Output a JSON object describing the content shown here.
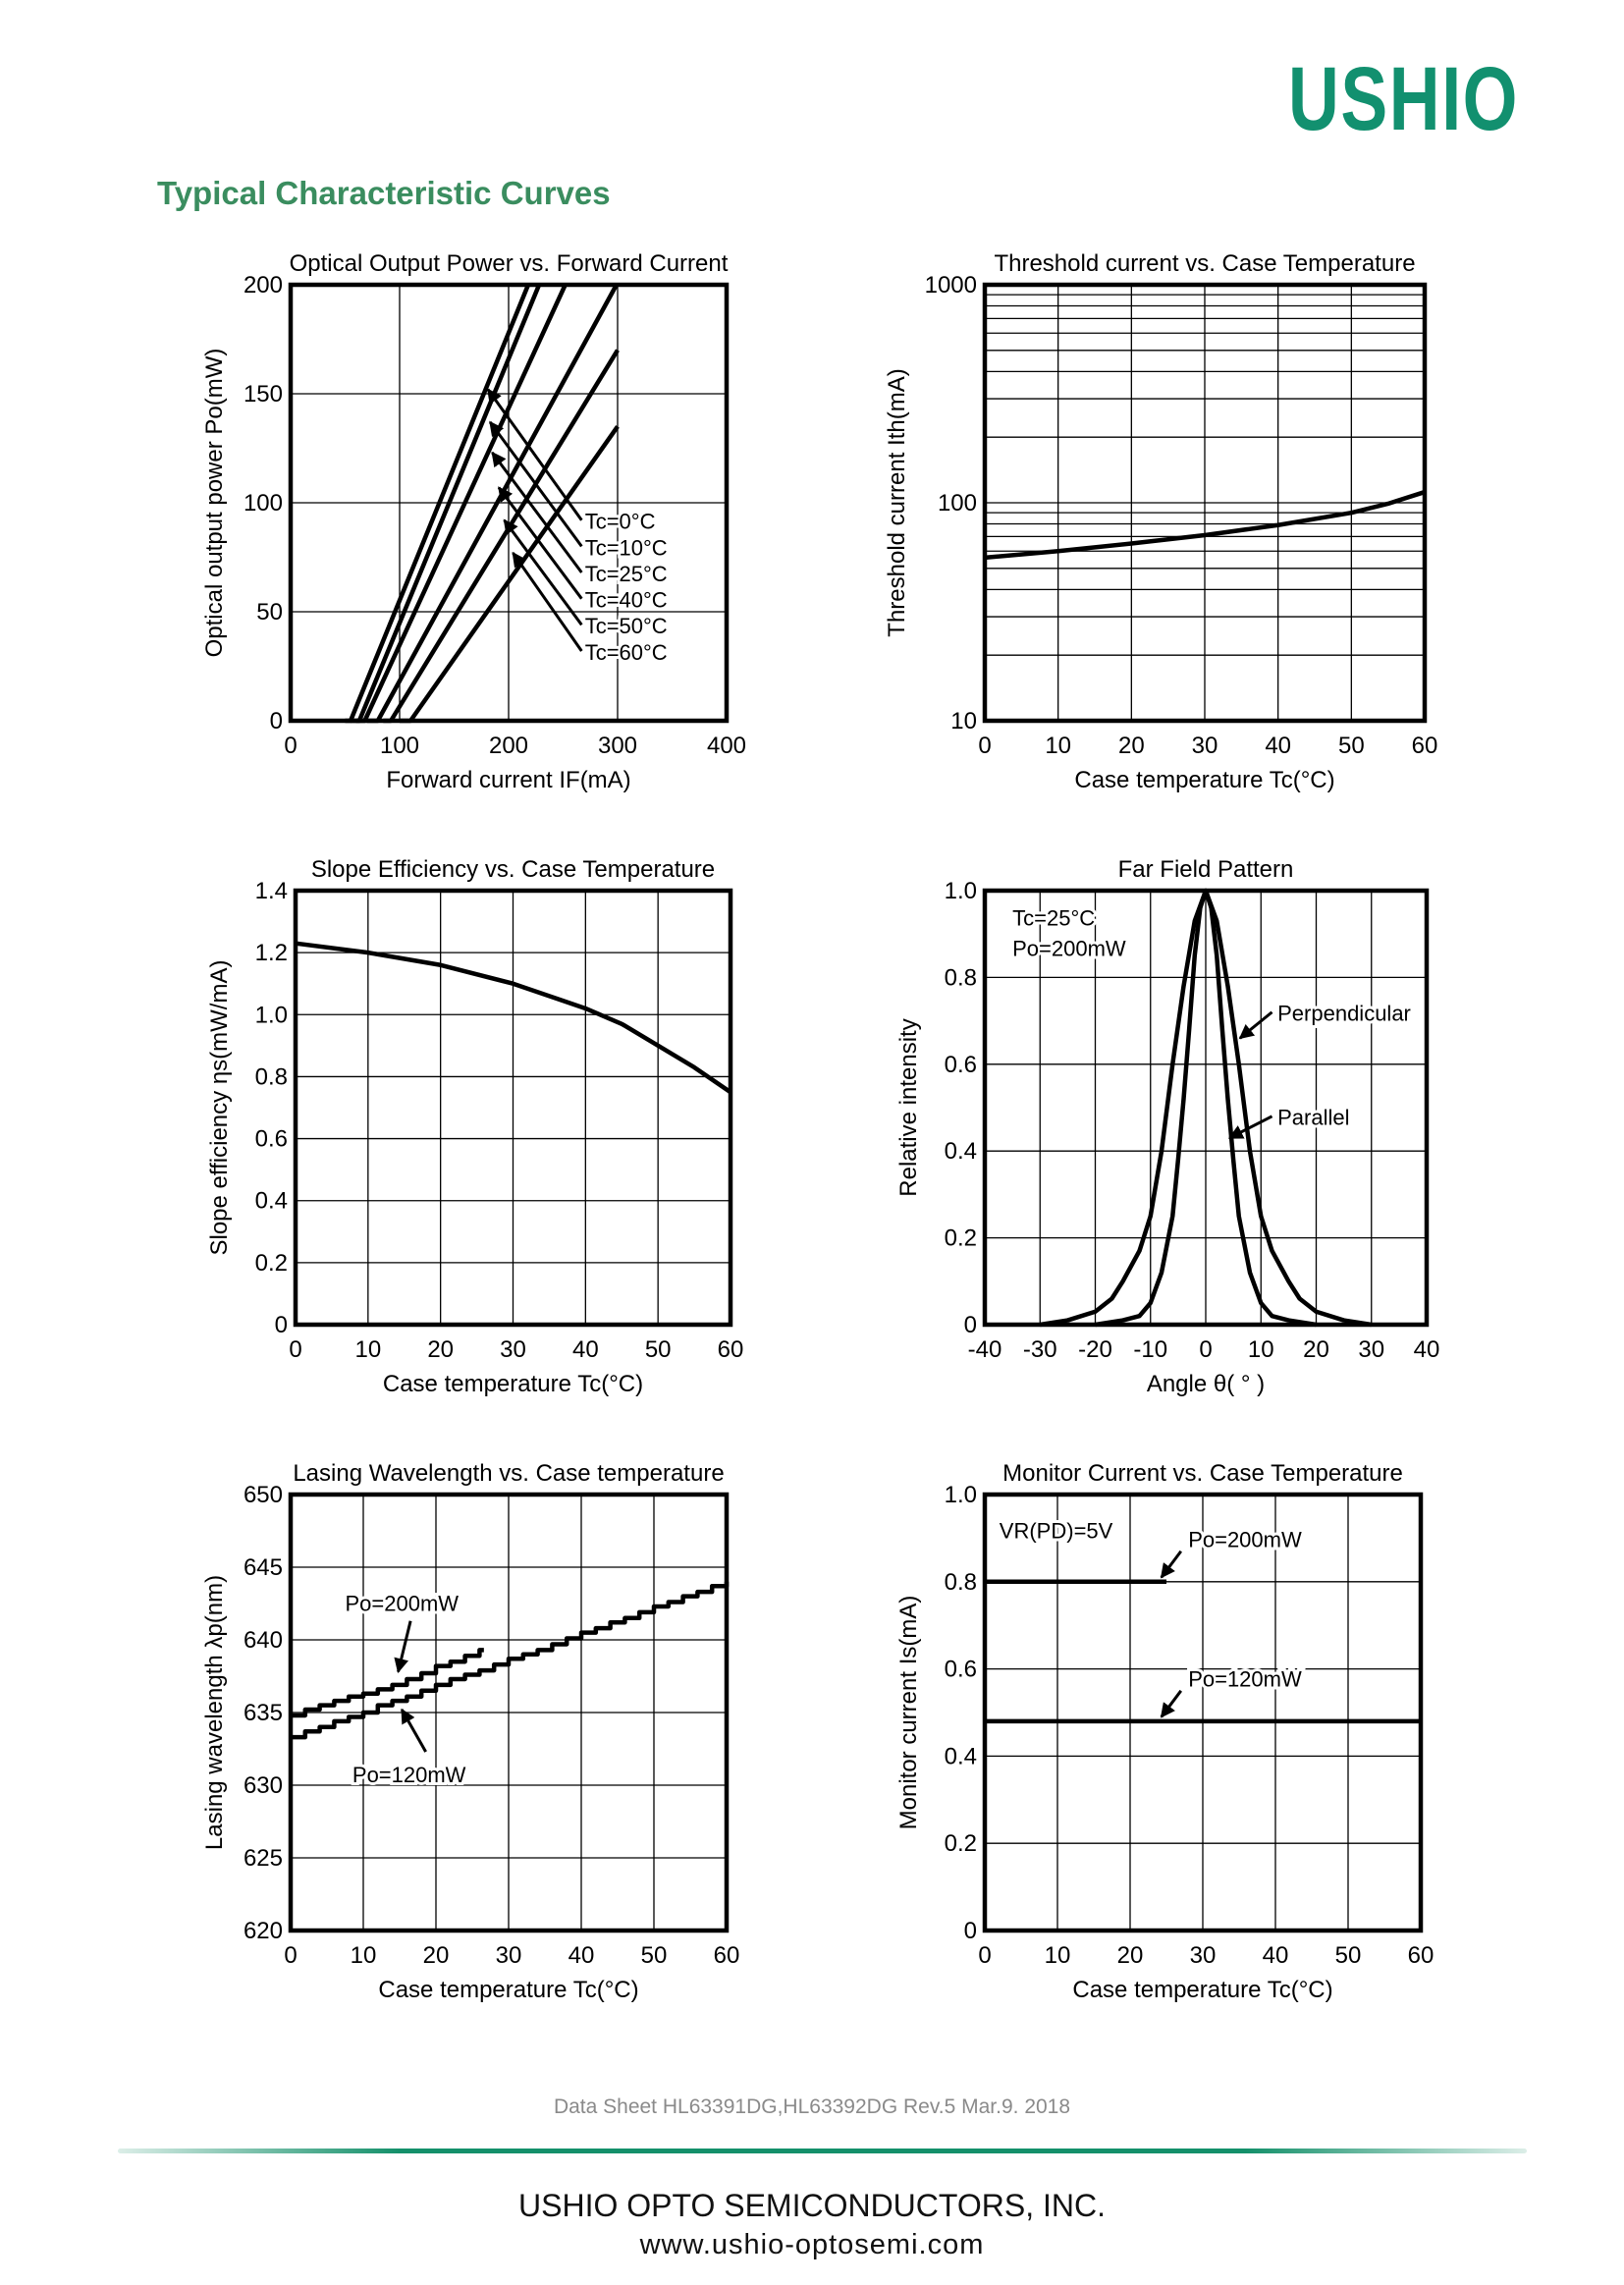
{
  "header": {
    "logo_text": "USHIO",
    "section_title": "Typical Characteristic Curves",
    "brand_color": "#12906f",
    "title_color": "#3a8d5f"
  },
  "chart_data": [
    {
      "id": "po-vs-if",
      "type": "line",
      "title": "Optical Output Power vs. Forward Current",
      "xlabel": "Forward current IF(mA)",
      "ylabel": "Optical output power Po(mW)",
      "xlim": [
        0,
        400
      ],
      "ylim": [
        0,
        200
      ],
      "ylog": false,
      "xgrid": [
        100,
        200,
        300
      ],
      "ygrid": [
        50,
        100,
        150
      ],
      "xticks": [
        0,
        100,
        200,
        300,
        400
      ],
      "xtick_labels": [
        "0",
        "100",
        "200",
        "300",
        "400"
      ],
      "yticks": [
        0,
        50,
        100,
        150,
        200
      ],
      "ytick_labels": [
        "0",
        "50",
        "100",
        "150",
        "200"
      ],
      "series": [
        {
          "name": "Tc=0°C",
          "points": [
            [
              50,
              0
            ],
            [
              55,
              0
            ],
            [
              218,
              200
            ]
          ]
        },
        {
          "name": "Tc=10°C",
          "points": [
            [
              55,
              0
            ],
            [
              63,
              0
            ],
            [
              228,
              200
            ]
          ]
        },
        {
          "name": "Tc=25°C",
          "points": [
            [
              60,
              0
            ],
            [
              68,
              0
            ],
            [
              252,
              200
            ]
          ]
        },
        {
          "name": "Tc=40°C",
          "points": [
            [
              70,
              0
            ],
            [
              80,
              0
            ],
            [
              299,
              200
            ]
          ]
        },
        {
          "name": "Tc=50°C",
          "points": [
            [
              85,
              0
            ],
            [
              92,
              0
            ],
            [
              300,
              170
            ]
          ]
        },
        {
          "name": "Tc=60°C",
          "points": [
            [
              100,
              0
            ],
            [
              110,
              0
            ],
            [
              300,
              135
            ]
          ]
        }
      ],
      "annotations": [
        {
          "text": "Tc=0°C",
          "at": [
            270,
            88
          ],
          "arrow_from": [
            267,
            92
          ],
          "arrow_to": [
            181,
            152
          ]
        },
        {
          "text": "Tc=10°C",
          "at": [
            270,
            76
          ],
          "arrow_from": [
            267,
            80
          ],
          "arrow_to": [
            183,
            137
          ]
        },
        {
          "text": "Tc=25°C",
          "at": [
            270,
            64
          ],
          "arrow_from": [
            267,
            68
          ],
          "arrow_to": [
            185,
            123
          ]
        },
        {
          "text": "Tc=40°C",
          "at": [
            270,
            52
          ],
          "arrow_from": [
            267,
            56
          ],
          "arrow_to": [
            191,
            107
          ]
        },
        {
          "text": "Tc=50°C",
          "at": [
            270,
            40
          ],
          "arrow_from": [
            267,
            44
          ],
          "arrow_to": [
            196,
            92
          ]
        },
        {
          "text": "Tc=60°C",
          "at": [
            270,
            28
          ],
          "arrow_from": [
            267,
            32
          ],
          "arrow_to": [
            204,
            77
          ]
        }
      ]
    },
    {
      "id": "ith-vs-tc",
      "type": "line",
      "title": "Threshold current vs. Case Temperature",
      "xlabel": "Case temperature Tc(°C)",
      "ylabel": "Threshold current Ith(mA)",
      "xlim": [
        0,
        60
      ],
      "ylim": [
        10,
        1000
      ],
      "ylog": true,
      "xgrid": [
        10,
        20,
        30,
        40,
        50
      ],
      "ygrid": [
        20,
        30,
        40,
        50,
        60,
        70,
        80,
        90,
        100,
        200,
        300,
        400,
        500,
        600,
        700,
        800,
        900
      ],
      "xticks": [
        0,
        10,
        20,
        30,
        40,
        50,
        60
      ],
      "xtick_labels": [
        "0",
        "10",
        "20",
        "30",
        "40",
        "50",
        "60"
      ],
      "yticks": [
        10,
        100,
        1000
      ],
      "ytick_labels": [
        "10",
        "100",
        "1000"
      ],
      "series": [
        {
          "name": "Ith",
          "points": [
            [
              0,
              56
            ],
            [
              10,
              60
            ],
            [
              20,
              65
            ],
            [
              30,
              71
            ],
            [
              40,
              79
            ],
            [
              50,
              90
            ],
            [
              55,
              99
            ],
            [
              60,
              112
            ]
          ]
        }
      ],
      "annotations": []
    },
    {
      "id": "slope-vs-tc",
      "type": "line",
      "title": "Slope Efficiency vs. Case Temperature",
      "xlabel": "Case temperature Tc(°C)",
      "ylabel": "Slope efficiency ηs(mW/mA)",
      "xlim": [
        0,
        60
      ],
      "ylim": [
        0,
        1.4
      ],
      "ylog": false,
      "xgrid": [
        10,
        20,
        30,
        40,
        50
      ],
      "ygrid": [
        0.2,
        0.4,
        0.6,
        0.8,
        1.0,
        1.2
      ],
      "xticks": [
        0,
        10,
        20,
        30,
        40,
        50,
        60
      ],
      "xtick_labels": [
        "0",
        "10",
        "20",
        "30",
        "40",
        "50",
        "60"
      ],
      "yticks": [
        0,
        0.2,
        0.4,
        0.6,
        0.8,
        1.0,
        1.2,
        1.4
      ],
      "ytick_labels": [
        "0",
        "0.2",
        "0.4",
        "0.6",
        "0.8",
        "1.0",
        "1.2",
        "1.4"
      ],
      "series": [
        {
          "name": "ηs",
          "points": [
            [
              0,
              1.23
            ],
            [
              10,
              1.2
            ],
            [
              20,
              1.16
            ],
            [
              30,
              1.1
            ],
            [
              40,
              1.02
            ],
            [
              45,
              0.97
            ],
            [
              50,
              0.9
            ],
            [
              55,
              0.83
            ],
            [
              60,
              0.75
            ]
          ]
        }
      ],
      "annotations": []
    },
    {
      "id": "far-field",
      "type": "line",
      "title": "Far Field Pattern",
      "xlabel": "Angle θ( ° )",
      "ylabel": "Relative intensity",
      "xlim": [
        -40,
        40
      ],
      "ylim": [
        0,
        1.0
      ],
      "ylog": false,
      "xgrid": [
        -30,
        -20,
        -10,
        0,
        10,
        20,
        30
      ],
      "ygrid": [
        0.2,
        0.4,
        0.6,
        0.8
      ],
      "xticks": [
        -40,
        -30,
        -20,
        -10,
        0,
        10,
        20,
        30,
        40
      ],
      "xtick_labels": [
        "-40",
        "-30",
        "-20",
        "-10",
        "0",
        "10",
        "20",
        "30",
        "40"
      ],
      "yticks": [
        0,
        0.2,
        0.4,
        0.6,
        0.8,
        1.0
      ],
      "ytick_labels": [
        "0",
        "0.2",
        "0.4",
        "0.6",
        "0.8",
        "1.0"
      ],
      "series": [
        {
          "name": "Perpendicular",
          "points": [
            [
              -30,
              0
            ],
            [
              -25,
              0.01
            ],
            [
              -20,
              0.03
            ],
            [
              -17,
              0.06
            ],
            [
              -15,
              0.1
            ],
            [
              -12,
              0.17
            ],
            [
              -10,
              0.25
            ],
            [
              -8,
              0.4
            ],
            [
              -7,
              0.5
            ],
            [
              -6,
              0.6
            ],
            [
              -4,
              0.78
            ],
            [
              -2,
              0.93
            ],
            [
              0,
              1
            ],
            [
              2,
              0.93
            ],
            [
              4,
              0.78
            ],
            [
              6,
              0.6
            ],
            [
              7,
              0.5
            ],
            [
              8,
              0.4
            ],
            [
              10,
              0.25
            ],
            [
              12,
              0.17
            ],
            [
              15,
              0.1
            ],
            [
              17,
              0.06
            ],
            [
              20,
              0.03
            ],
            [
              25,
              0.01
            ],
            [
              30,
              0
            ]
          ]
        },
        {
          "name": "Parallel",
          "points": [
            [
              -20,
              0
            ],
            [
              -15,
              0.01
            ],
            [
              -12,
              0.02
            ],
            [
              -10,
              0.05
            ],
            [
              -8,
              0.12
            ],
            [
              -6,
              0.25
            ],
            [
              -5,
              0.38
            ],
            [
              -4,
              0.52
            ],
            [
              -3,
              0.68
            ],
            [
              -2,
              0.85
            ],
            [
              -1,
              0.96
            ],
            [
              0,
              1
            ],
            [
              1,
              0.96
            ],
            [
              2,
              0.85
            ],
            [
              3,
              0.68
            ],
            [
              4,
              0.52
            ],
            [
              5,
              0.38
            ],
            [
              6,
              0.25
            ],
            [
              8,
              0.12
            ],
            [
              10,
              0.05
            ],
            [
              12,
              0.02
            ],
            [
              15,
              0.01
            ],
            [
              20,
              0
            ]
          ]
        }
      ],
      "annotations": [
        {
          "text": "Tc=25°C",
          "at": [
            -35,
            0.92
          ]
        },
        {
          "text": "Po=200mW",
          "at": [
            -35,
            0.85
          ]
        },
        {
          "text": "Perpendicular",
          "at": [
            13,
            0.7
          ],
          "arrow_from": [
            12,
            0.72
          ],
          "arrow_to": [
            6.2,
            0.66
          ]
        },
        {
          "text": "Parallel",
          "at": [
            13,
            0.46
          ],
          "arrow_from": [
            12,
            0.48
          ],
          "arrow_to": [
            4.3,
            0.43
          ]
        }
      ]
    },
    {
      "id": "lambda-vs-tc",
      "type": "line",
      "title": "Lasing Wavelength vs. Case temperature",
      "xlabel": "Case temperature Tc(°C)",
      "ylabel": "Lasing wavelength λp(nm)",
      "xlim": [
        0,
        60
      ],
      "ylim": [
        620,
        650
      ],
      "ylog": false,
      "step": true,
      "xgrid": [
        10,
        20,
        30,
        40,
        50
      ],
      "ygrid": [
        625,
        630,
        635,
        640,
        645
      ],
      "xticks": [
        0,
        10,
        20,
        30,
        40,
        50,
        60
      ],
      "xtick_labels": [
        "0",
        "10",
        "20",
        "30",
        "40",
        "50",
        "60"
      ],
      "yticks": [
        620,
        625,
        630,
        635,
        640,
        645,
        650
      ],
      "ytick_labels": [
        "620",
        "625",
        "630",
        "635",
        "640",
        "645",
        "650"
      ],
      "series": [
        {
          "name": "Po=200mW",
          "x_start": 0,
          "x_step": 2,
          "values": [
            634.8,
            635.2,
            635.5,
            635.8,
            636.1,
            636.3,
            636.6,
            636.9,
            637.3,
            637.7,
            638.2,
            638.5,
            638.9,
            639.3
          ]
        },
        {
          "name": "Po=120mW",
          "x_start": 0,
          "x_step": 2,
          "values": [
            633.3,
            633.7,
            634.0,
            634.4,
            634.7,
            635.0,
            635.5,
            635.8,
            636.1,
            636.5,
            636.9,
            637.3,
            637.6,
            637.9,
            638.3,
            638.7,
            639.0,
            639.3,
            639.7,
            640.1,
            640.5,
            640.8,
            641.2,
            641.5,
            641.9,
            642.3,
            642.6,
            643.0,
            643.3,
            643.7,
            644.0
          ]
        }
      ],
      "annotations": [
        {
          "text": "Po=200mW",
          "at": [
            7.5,
            642.0
          ],
          "arrow_from": [
            16.5,
            641.3
          ],
          "arrow_to": [
            14.8,
            637.8
          ]
        },
        {
          "text": "Po=120mW",
          "at": [
            8.5,
            630.2
          ],
          "arrow_from": [
            18.6,
            632.3
          ],
          "arrow_to": [
            15.3,
            635.2
          ]
        }
      ]
    },
    {
      "id": "is-vs-tc",
      "type": "line",
      "title": "Monitor Current vs. Case Temperature",
      "xlabel": "Case temperature Tc(°C)",
      "ylabel": "Monitor current Is(mA)",
      "xlim": [
        0,
        60
      ],
      "ylim": [
        0,
        1.0
      ],
      "ylog": false,
      "xgrid": [
        10,
        20,
        30,
        40,
        50
      ],
      "ygrid": [
        0.2,
        0.4,
        0.6,
        0.8
      ],
      "xticks": [
        0,
        10,
        20,
        30,
        40,
        50,
        60
      ],
      "xtick_labels": [
        "0",
        "10",
        "20",
        "30",
        "40",
        "50",
        "60"
      ],
      "yticks": [
        0,
        0.2,
        0.4,
        0.6,
        0.8,
        1.0
      ],
      "ytick_labels": [
        "0",
        "0.2",
        "0.4",
        "0.6",
        "0.8",
        "1.0"
      ],
      "series": [
        {
          "name": "Po=200mW",
          "points": [
            [
              0,
              0.8
            ],
            [
              25,
              0.8
            ]
          ]
        },
        {
          "name": "Po=120mW",
          "points": [
            [
              0,
              0.48
            ],
            [
              60,
              0.48
            ]
          ]
        }
      ],
      "annotations": [
        {
          "text": "VR(PD)=5V",
          "at": [
            2,
            0.9
          ]
        },
        {
          "text": "Po=200mW",
          "at": [
            28,
            0.88
          ],
          "arrow_from": [
            27,
            0.87
          ],
          "arrow_to": [
            24.3,
            0.81
          ]
        },
        {
          "text": "Po=120mW",
          "at": [
            28,
            0.56
          ],
          "arrow_from": [
            27,
            0.55
          ],
          "arrow_to": [
            24.3,
            0.49
          ]
        }
      ]
    }
  ],
  "footer": {
    "doc_note": "Data Sheet HL63391DG,HL63392DG Rev.5 Mar.9. 2018",
    "company": "USHIO OPTO SEMICONDUCTORS, INC.",
    "url": "www.ushio-optosemi.com"
  }
}
